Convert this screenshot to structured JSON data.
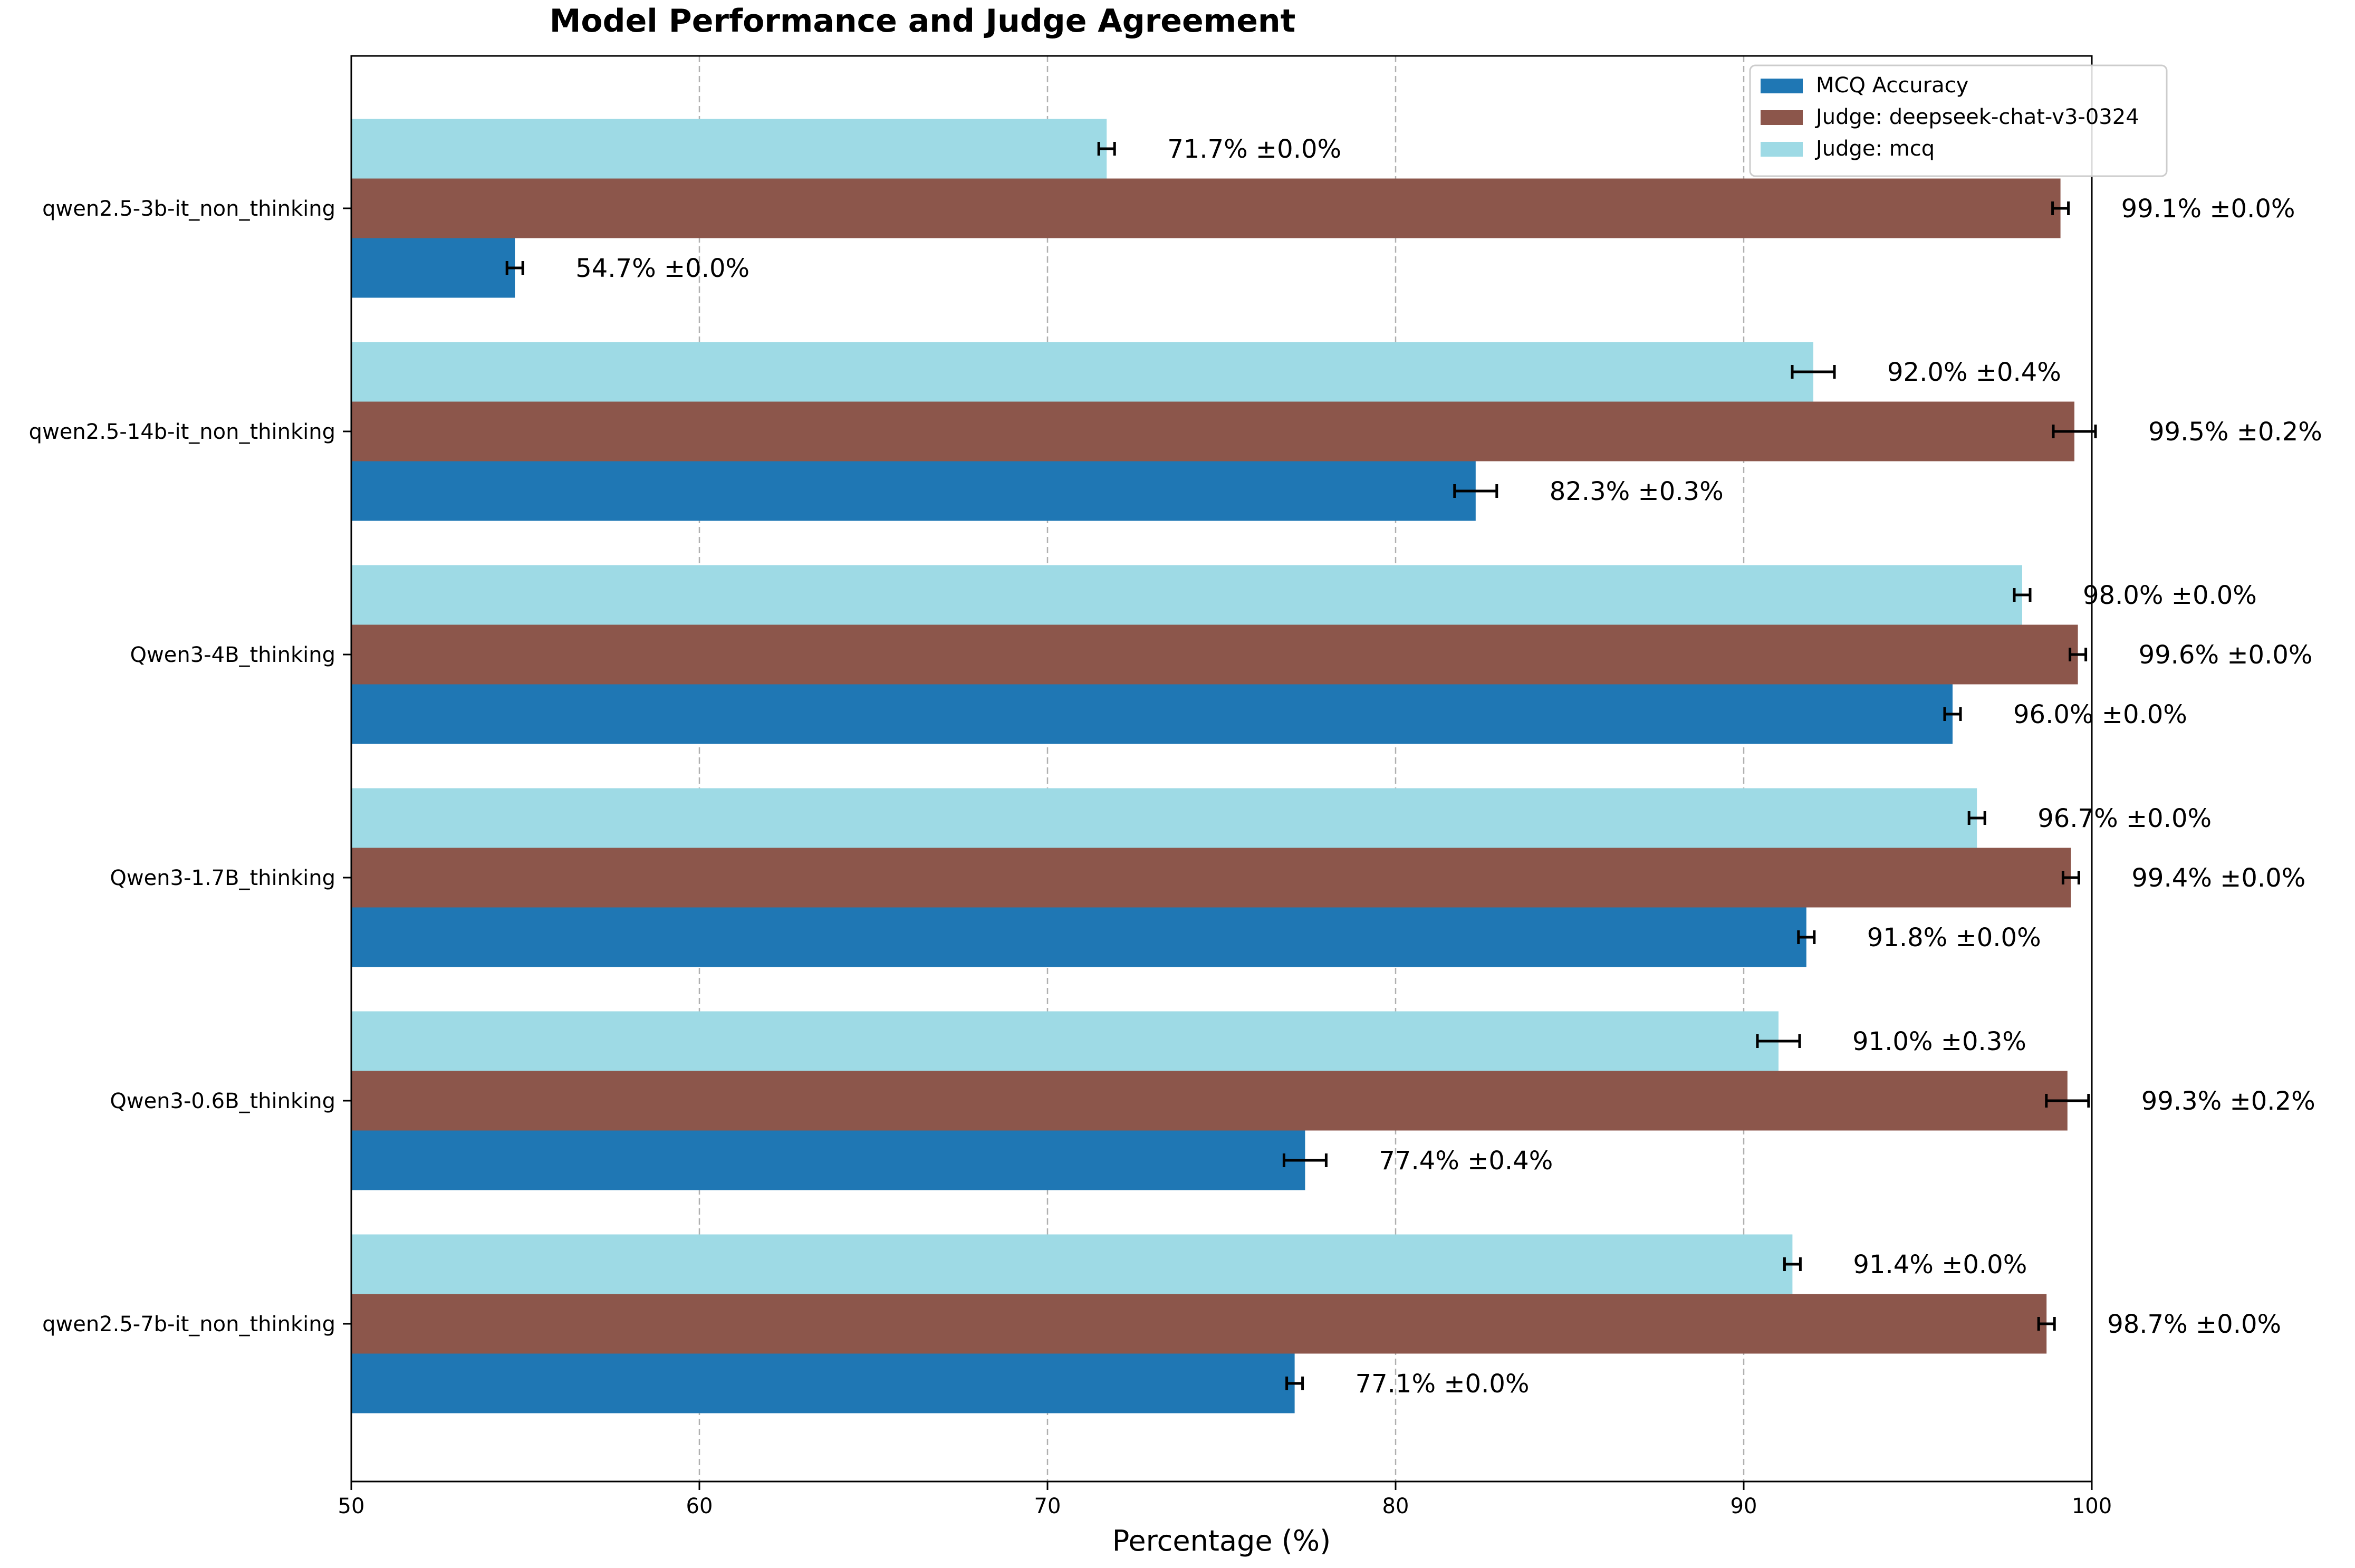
{
  "chart_data": {
    "type": "bar",
    "orientation": "horizontal",
    "title": "Model Performance and Judge Agreement",
    "xlabel": "Percentage (%)",
    "ylabel": "",
    "xlim": [
      50,
      100
    ],
    "xticks": [
      50,
      60,
      70,
      80,
      90,
      100
    ],
    "grid": "x, dashed",
    "legend_position": "top-right",
    "categories": [
      "qwen2.5-7b-it_non_thinking",
      "Qwen3-0.6B_thinking",
      "Qwen3-1.7B_thinking",
      "Qwen3-4B_thinking",
      "qwen2.5-14b-it_non_thinking",
      "qwen2.5-3b-it_non_thinking"
    ],
    "series": [
      {
        "name": "MCQ Accuracy",
        "color": "#1f77b4",
        "values": [
          77.1,
          77.4,
          91.8,
          96.0,
          82.3,
          54.7
        ],
        "errors": [
          0.0,
          0.4,
          0.0,
          0.0,
          0.3,
          0.0
        ],
        "labels": [
          "77.1% ±0.0%",
          "77.4% ±0.4%",
          "91.8% ±0.0%",
          "96.0% ±0.0%",
          "82.3% ±0.3%",
          "54.7% ±0.0%"
        ]
      },
      {
        "name": "Judge: deepseek-chat-v3-0324",
        "color": "#8c564b",
        "values": [
          98.7,
          99.3,
          99.4,
          99.6,
          99.5,
          99.1
        ],
        "errors": [
          0.0,
          0.2,
          0.0,
          0.0,
          0.2,
          0.0
        ],
        "labels": [
          "98.7% ±0.0%",
          "99.3% ±0.2%",
          "99.4% ±0.0%",
          "99.6% ±0.0%",
          "99.5% ±0.2%",
          "99.1% ±0.0%"
        ]
      },
      {
        "name": "Judge: mcq",
        "color": "#9edae5",
        "values": [
          91.4,
          91.0,
          96.7,
          98.0,
          92.0,
          71.7
        ],
        "errors": [
          0.0,
          0.3,
          0.0,
          0.0,
          0.4,
          0.0
        ],
        "labels": [
          "91.4% ±0.0%",
          "91.0% ±0.3%",
          "96.7% ±0.0%",
          "98.0% ±0.0%",
          "92.0% ±0.4%",
          "71.7% ±0.0%"
        ]
      }
    ]
  }
}
